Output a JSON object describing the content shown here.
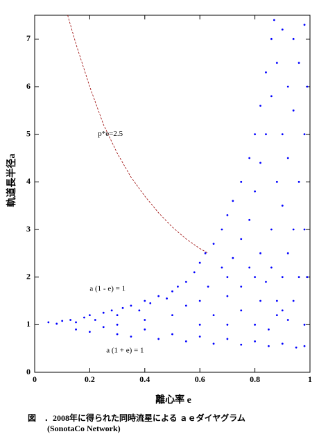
{
  "chart_data": {
    "type": "scatter",
    "xlabel": "離心率 e",
    "ylabel": "軌道長半径a",
    "caption": [
      "図　．2008年に得られた同時流星による ａｅダイヤグラム",
      "(SonotaCo Network)"
    ],
    "xlim": [
      0,
      1
    ],
    "ylim": [
      0,
      7.5
    ],
    "xticks": [
      0,
      0.2,
      0.4,
      0.6,
      0.8,
      1
    ],
    "yticks": [
      0,
      1,
      2,
      3,
      4,
      5,
      6,
      7
    ],
    "annotations": [
      "p*e=2.5",
      "a (1 - e) = 1",
      "a (1 + e) = 1"
    ],
    "annotation_colors": [
      "#cc0000",
      "#0000cc",
      "#0000cc"
    ],
    "points": {
      "color": "#0000ff",
      "x": [
        0.05,
        0.08,
        0.1,
        0.13,
        0.15,
        0.18,
        0.2,
        0.22,
        0.25,
        0.28,
        0.3,
        0.32,
        0.35,
        0.38,
        0.4,
        0.42,
        0.45,
        0.48,
        0.5,
        0.52,
        0.55,
        0.58,
        0.6,
        0.62,
        0.65,
        0.68,
        0.7,
        0.72,
        0.75,
        0.78,
        0.8,
        0.82,
        0.84,
        0.86,
        0.87,
        0.15,
        0.2,
        0.25,
        0.3,
        0.35,
        0.4,
        0.45,
        0.5,
        0.55,
        0.6,
        0.65,
        0.7,
        0.75,
        0.8,
        0.85,
        0.9,
        0.95,
        0.98,
        0.3,
        0.4,
        0.5,
        0.55,
        0.6,
        0.65,
        0.7,
        0.7,
        0.72,
        0.75,
        0.75,
        0.78,
        0.78,
        0.8,
        0.8,
        0.82,
        0.82,
        0.84,
        0.84,
        0.86,
        0.86,
        0.86,
        0.88,
        0.88,
        0.88,
        0.88,
        0.9,
        0.9,
        0.9,
        0.9,
        0.9,
        0.92,
        0.92,
        0.92,
        0.92,
        0.94,
        0.94,
        0.94,
        0.94,
        0.96,
        0.96,
        0.96,
        0.98,
        0.98,
        0.98,
        0.98,
        0.99,
        0.99,
        0.6,
        0.7,
        0.8,
        0.85,
        0.75,
        0.82,
        0.68,
        0.63
      ],
      "values": [
        1.05,
        1.02,
        1.08,
        1.1,
        1.05,
        1.15,
        1.2,
        1.1,
        1.25,
        1.3,
        1.2,
        1.35,
        1.4,
        1.3,
        1.5,
        1.45,
        1.6,
        1.55,
        1.7,
        1.8,
        1.9,
        2.1,
        2.3,
        2.5,
        2.7,
        3.0,
        3.3,
        3.6,
        4.0,
        4.5,
        5.0,
        5.6,
        6.3,
        7.0,
        7.4,
        0.9,
        0.85,
        0.95,
        0.8,
        0.75,
        0.9,
        0.7,
        0.8,
        0.65,
        0.75,
        0.6,
        0.7,
        0.58,
        0.65,
        0.55,
        0.6,
        0.52,
        0.55,
        1.0,
        1.1,
        1.2,
        1.4,
        1.5,
        1.2,
        1.6,
        2.0,
        2.4,
        1.8,
        2.8,
        2.2,
        3.2,
        2.0,
        3.8,
        2.5,
        4.4,
        1.9,
        5.0,
        2.2,
        3.0,
        5.8,
        1.2,
        1.5,
        4.0,
        6.5,
        1.3,
        2.0,
        3.5,
        5.0,
        7.2,
        1.1,
        2.5,
        4.5,
        6.0,
        1.5,
        3.0,
        5.5,
        7.0,
        2.0,
        4.0,
        6.5,
        1.0,
        3.0,
        5.0,
        7.3,
        2.0,
        6.0,
        1.0,
        1.0,
        1.0,
        0.9,
        1.3,
        1.5,
        2.2,
        1.8
      ]
    },
    "curve": {
      "color": "#990000",
      "dashed": true,
      "x": [
        0.12,
        0.15,
        0.2,
        0.25,
        0.3,
        0.35,
        0.4,
        0.45,
        0.5,
        0.55,
        0.6,
        0.63
      ],
      "values": [
        7.5,
        6.9,
        6.0,
        5.2,
        4.6,
        4.1,
        3.7,
        3.35,
        3.05,
        2.8,
        2.6,
        2.5
      ]
    }
  }
}
